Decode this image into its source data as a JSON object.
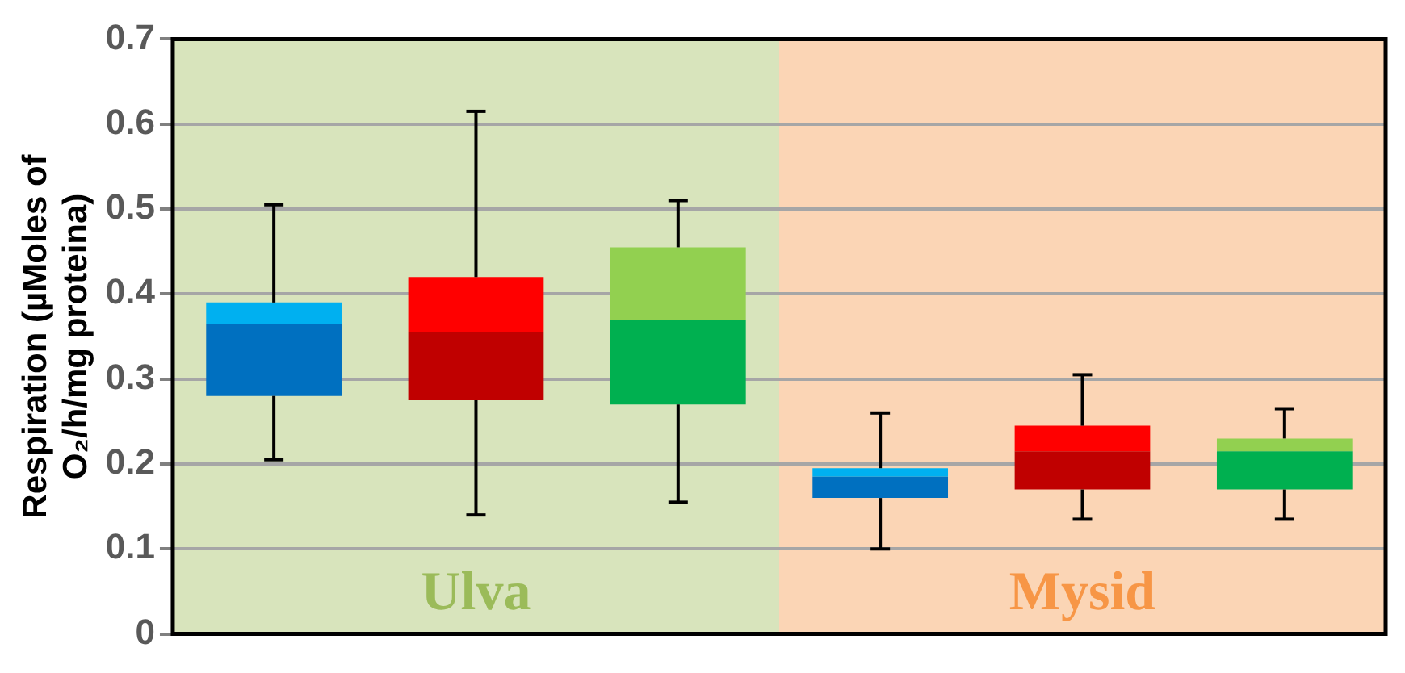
{
  "chart_data": {
    "type": "box",
    "ylabel": "Respiration (µMoles of O₂/h/mg proteina)",
    "categories": [
      null,
      null,
      null,
      null,
      null,
      null
    ],
    "boxes": [
      {
        "low": 0.205,
        "q1": 0.28,
        "median": 0.365,
        "q3": 0.39,
        "high": 0.505
      },
      {
        "low": 0.14,
        "q1": 0.275,
        "median": 0.355,
        "q3": 0.42,
        "high": 0.615
      },
      {
        "low": 0.155,
        "q1": 0.27,
        "median": 0.37,
        "q3": 0.455,
        "high": 0.51
      },
      {
        "low": 0.1,
        "q1": 0.16,
        "median": 0.185,
        "q3": 0.195,
        "high": 0.26
      },
      {
        "low": 0.135,
        "q1": 0.17,
        "median": 0.215,
        "q3": 0.245,
        "high": 0.305
      },
      {
        "low": 0.135,
        "q1": 0.17,
        "median": 0.215,
        "q3": 0.23,
        "high": 0.265
      }
    ],
    "colors": [
      [
        "#0070c0",
        "#00b0f0"
      ],
      [
        "#c00000",
        "#ff0000"
      ],
      [
        "#00b050",
        "#92d050"
      ],
      [
        "#0070c0",
        "#00b0f0"
      ],
      [
        "#c00000",
        "#ff0000"
      ],
      [
        "#00b050",
        "#92d050"
      ]
    ],
    "annotations": [
      "Ulva",
      "Mysid"
    ],
    "ylim": [
      0,
      0.7
    ],
    "yticks": [
      0,
      0.1,
      0.2,
      0.3,
      0.4,
      0.5,
      0.6,
      0.7
    ],
    "grid": "y",
    "tick_labels": "y"
  }
}
